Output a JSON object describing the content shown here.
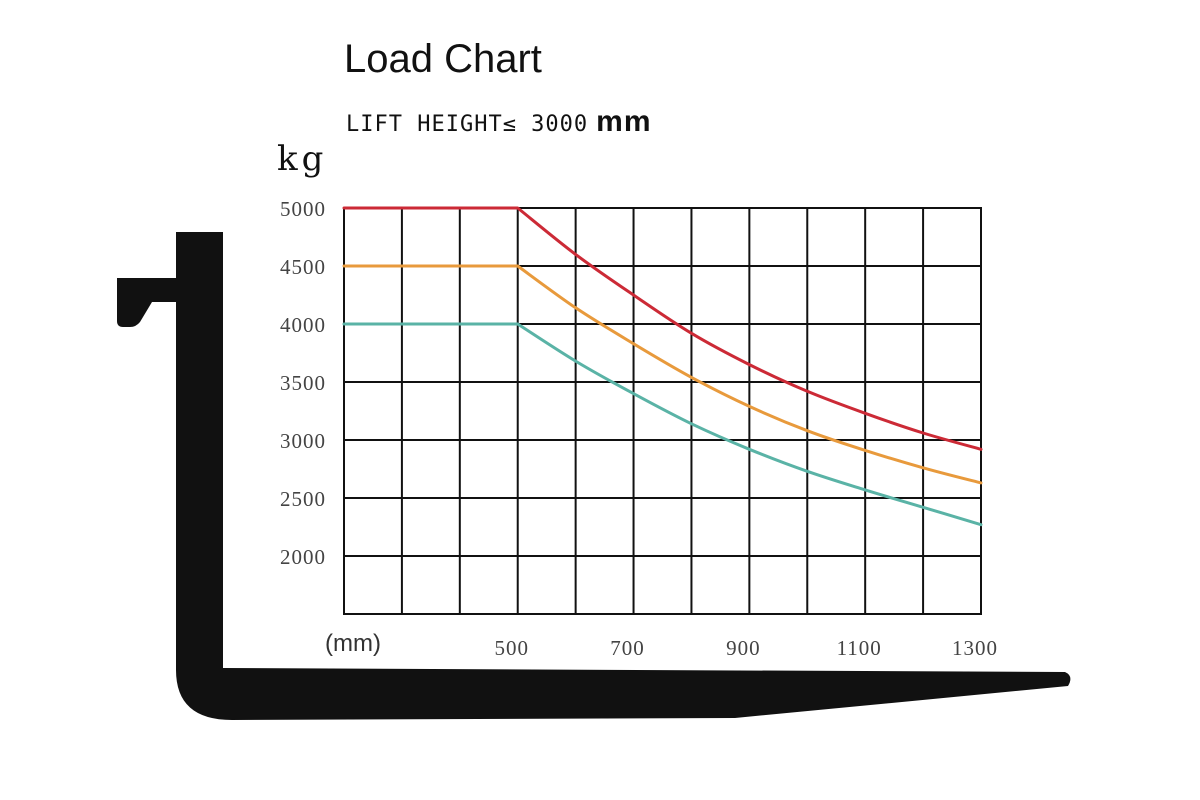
{
  "chart_data": {
    "type": "line",
    "title": "Load Chart",
    "subtitle": "LIFT HEIGHT≤ 3000",
    "subtitle_unit": "mm",
    "ylabel": "kg",
    "xlabel": "(mm)",
    "ylim": [
      1500,
      5000
    ],
    "xlim": [
      200,
      1300
    ],
    "y_ticks": [
      5000,
      4500,
      4000,
      3500,
      3000,
      2500,
      2000
    ],
    "x_ticks": [
      500,
      700,
      900,
      1100,
      1300
    ],
    "grid": true,
    "series": [
      {
        "color": "#cc2a36",
        "points": [
          [
            200,
            5000
          ],
          [
            500,
            5000
          ],
          [
            600,
            4600
          ],
          [
            700,
            4250
          ],
          [
            800,
            3920
          ],
          [
            900,
            3650
          ],
          [
            1000,
            3420
          ],
          [
            1100,
            3230
          ],
          [
            1200,
            3060
          ],
          [
            1300,
            2920
          ]
        ]
      },
      {
        "color": "#e89a3c",
        "points": [
          [
            200,
            4500
          ],
          [
            500,
            4500
          ],
          [
            600,
            4140
          ],
          [
            700,
            3830
          ],
          [
            800,
            3540
          ],
          [
            900,
            3290
          ],
          [
            1000,
            3080
          ],
          [
            1100,
            2910
          ],
          [
            1200,
            2760
          ],
          [
            1300,
            2630
          ]
        ]
      },
      {
        "color": "#5ab3a6",
        "points": [
          [
            200,
            4000
          ],
          [
            500,
            4000
          ],
          [
            600,
            3680
          ],
          [
            700,
            3400
          ],
          [
            800,
            3140
          ],
          [
            900,
            2920
          ],
          [
            1000,
            2730
          ],
          [
            1100,
            2570
          ],
          [
            1200,
            2420
          ],
          [
            1300,
            2270
          ]
        ]
      }
    ]
  },
  "fork": {
    "color": "#111111"
  }
}
